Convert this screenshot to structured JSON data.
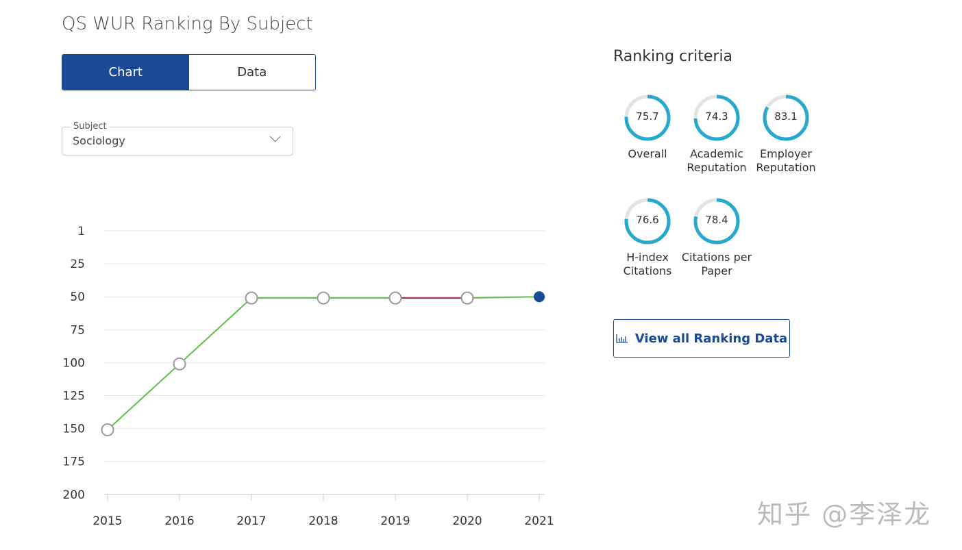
{
  "title": "QS WUR Ranking By Subject",
  "tabs": [
    {
      "label": "Chart",
      "active": true
    },
    {
      "label": "Data",
      "active": false
    }
  ],
  "subject": {
    "label": "Subject",
    "value": "Sociology"
  },
  "criteria_title": "Ranking criteria",
  "criteria": [
    {
      "value": "75.7",
      "name": "Overall",
      "score": 75.7
    },
    {
      "value": "74.3",
      "name": "Academic Reputation",
      "score": 74.3
    },
    {
      "value": "83.1",
      "name": "Employer Reputation",
      "score": 83.1
    },
    {
      "value": "76.6",
      "name": "H-index Citations",
      "score": 76.6
    },
    {
      "value": "78.4",
      "name": "Citations per Paper",
      "score": 78.4
    }
  ],
  "view_all_label": "View all Ranking Data",
  "watermark": "知乎 @李泽龙",
  "colors": {
    "primary": "#1a4a94",
    "ring": "#27a9cf",
    "ring_bg": "#e3e3e3",
    "up": "#5fbf4a",
    "down": "#a0223c"
  },
  "chart_data": {
    "type": "line",
    "x": [
      "2015",
      "2016",
      "2017",
      "2018",
      "2019",
      "2020",
      "2021"
    ],
    "values": [
      151,
      101,
      51,
      51,
      51,
      51,
      50
    ],
    "segment_colors": [
      "#5fbf4a",
      "#5fbf4a",
      "#5fbf4a",
      "#5fbf4a",
      "#a0223c",
      "#5fbf4a"
    ],
    "yticks": [
      1,
      25,
      50,
      75,
      100,
      125,
      150,
      175,
      200
    ],
    "ylim": [
      1,
      200
    ],
    "y_inverted": true,
    "grid": true,
    "xlabel": "",
    "ylabel": ""
  }
}
